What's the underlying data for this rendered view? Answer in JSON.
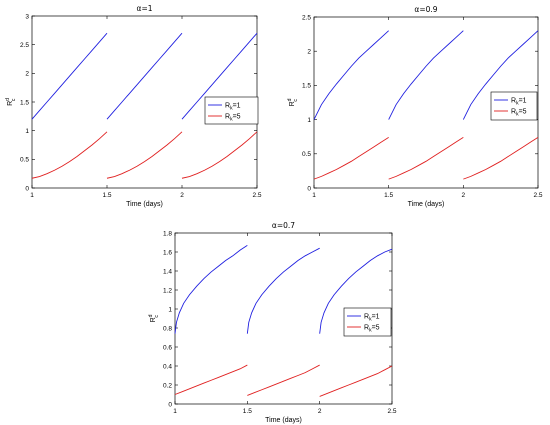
{
  "chart_data": [
    {
      "type": "line",
      "title": "α=1",
      "xlabel": "Time (days)",
      "ylabel": "R_c^d",
      "xlim": [
        1,
        2.5
      ],
      "ylim": [
        0,
        3
      ],
      "xticks": [
        "1",
        "1.5",
        "2",
        "2.5"
      ],
      "yticks": [
        "0",
        "0.5",
        "1",
        "1.5",
        "2",
        "2.5",
        "3"
      ],
      "grid": false,
      "legend_position": "right",
      "series": [
        {
          "name": "R_k=1",
          "legend_base": "R",
          "legend_sub": "k",
          "legend_tail": "=1",
          "color": "#2020e0",
          "segments": [
            [
              [
                1.0,
                1.2
              ],
              [
                1.05,
                1.35
              ],
              [
                1.1,
                1.5
              ],
              [
                1.15,
                1.65
              ],
              [
                1.2,
                1.8
              ],
              [
                1.25,
                1.95
              ],
              [
                1.3,
                2.1
              ],
              [
                1.35,
                2.25
              ],
              [
                1.4,
                2.4
              ],
              [
                1.45,
                2.55
              ],
              [
                1.5,
                2.7
              ]
            ],
            [
              [
                1.5,
                1.2
              ],
              [
                1.55,
                1.35
              ],
              [
                1.6,
                1.5
              ],
              [
                1.65,
                1.65
              ],
              [
                1.7,
                1.8
              ],
              [
                1.75,
                1.95
              ],
              [
                1.8,
                2.1
              ],
              [
                1.85,
                2.25
              ],
              [
                1.9,
                2.4
              ],
              [
                1.95,
                2.55
              ],
              [
                2.0,
                2.7
              ]
            ],
            [
              [
                2.0,
                1.2
              ],
              [
                2.05,
                1.35
              ],
              [
                2.1,
                1.5
              ],
              [
                2.15,
                1.65
              ],
              [
                2.2,
                1.8
              ],
              [
                2.25,
                1.95
              ],
              [
                2.3,
                2.1
              ],
              [
                2.35,
                2.25
              ],
              [
                2.4,
                2.4
              ],
              [
                2.45,
                2.55
              ],
              [
                2.5,
                2.7
              ]
            ]
          ]
        },
        {
          "name": "R_k=5",
          "legend_base": "R",
          "legend_sub": "k",
          "legend_tail": "=5",
          "color": "#e02020",
          "segments": [
            [
              [
                1.0,
                0.17
              ],
              [
                1.05,
                0.2
              ],
              [
                1.1,
                0.25
              ],
              [
                1.15,
                0.31
              ],
              [
                1.2,
                0.38
              ],
              [
                1.25,
                0.46
              ],
              [
                1.3,
                0.55
              ],
              [
                1.35,
                0.65
              ],
              [
                1.4,
                0.75
              ],
              [
                1.45,
                0.86
              ],
              [
                1.5,
                0.98
              ]
            ],
            [
              [
                1.5,
                0.17
              ],
              [
                1.55,
                0.2
              ],
              [
                1.6,
                0.25
              ],
              [
                1.65,
                0.31
              ],
              [
                1.7,
                0.38
              ],
              [
                1.75,
                0.46
              ],
              [
                1.8,
                0.55
              ],
              [
                1.85,
                0.65
              ],
              [
                1.9,
                0.75
              ],
              [
                1.95,
                0.86
              ],
              [
                2.0,
                0.98
              ]
            ],
            [
              [
                2.0,
                0.17
              ],
              [
                2.05,
                0.2
              ],
              [
                2.1,
                0.25
              ],
              [
                2.15,
                0.31
              ],
              [
                2.2,
                0.38
              ],
              [
                2.25,
                0.46
              ],
              [
                2.3,
                0.55
              ],
              [
                2.35,
                0.65
              ],
              [
                2.4,
                0.75
              ],
              [
                2.45,
                0.86
              ],
              [
                2.5,
                0.98
              ]
            ]
          ]
        }
      ]
    },
    {
      "type": "line",
      "title": "α=0.9",
      "xlabel": "Time (days)",
      "ylabel": "R_c^d",
      "xlim": [
        1,
        2.5
      ],
      "ylim": [
        0,
        2.5
      ],
      "xticks": [
        "1",
        "1.5",
        "2",
        "2.5"
      ],
      "yticks": [
        "0",
        "0.5",
        "1",
        "1.5",
        "2",
        "2.5"
      ],
      "grid": false,
      "legend_position": "right",
      "series": [
        {
          "name": "R_k=1",
          "legend_base": "R",
          "legend_sub": "k",
          "legend_tail": "=1",
          "color": "#2020e0",
          "segments": [
            [
              [
                1.0,
                1.0
              ],
              [
                1.05,
                1.22
              ],
              [
                1.1,
                1.38
              ],
              [
                1.15,
                1.52
              ],
              [
                1.2,
                1.65
              ],
              [
                1.25,
                1.78
              ],
              [
                1.3,
                1.9
              ],
              [
                1.35,
                2.0
              ],
              [
                1.4,
                2.1
              ],
              [
                1.45,
                2.2
              ],
              [
                1.5,
                2.3
              ]
            ],
            [
              [
                1.5,
                1.0
              ],
              [
                1.55,
                1.22
              ],
              [
                1.6,
                1.38
              ],
              [
                1.65,
                1.52
              ],
              [
                1.7,
                1.65
              ],
              [
                1.75,
                1.78
              ],
              [
                1.8,
                1.9
              ],
              [
                1.85,
                2.0
              ],
              [
                1.9,
                2.1
              ],
              [
                1.95,
                2.2
              ],
              [
                2.0,
                2.3
              ]
            ],
            [
              [
                2.0,
                1.0
              ],
              [
                2.05,
                1.22
              ],
              [
                2.1,
                1.38
              ],
              [
                2.15,
                1.52
              ],
              [
                2.2,
                1.65
              ],
              [
                2.25,
                1.78
              ],
              [
                2.3,
                1.9
              ],
              [
                2.35,
                2.0
              ],
              [
                2.4,
                2.1
              ],
              [
                2.45,
                2.2
              ],
              [
                2.5,
                2.3
              ]
            ]
          ]
        },
        {
          "name": "R_k=5",
          "legend_base": "R",
          "legend_sub": "k",
          "legend_tail": "=5",
          "color": "#e02020",
          "segments": [
            [
              [
                1.0,
                0.13
              ],
              [
                1.05,
                0.17
              ],
              [
                1.1,
                0.22
              ],
              [
                1.15,
                0.27
              ],
              [
                1.2,
                0.33
              ],
              [
                1.25,
                0.39
              ],
              [
                1.3,
                0.46
              ],
              [
                1.35,
                0.53
              ],
              [
                1.4,
                0.6
              ],
              [
                1.45,
                0.67
              ],
              [
                1.5,
                0.74
              ]
            ],
            [
              [
                1.5,
                0.13
              ],
              [
                1.55,
                0.17
              ],
              [
                1.6,
                0.22
              ],
              [
                1.65,
                0.27
              ],
              [
                1.7,
                0.33
              ],
              [
                1.75,
                0.39
              ],
              [
                1.8,
                0.46
              ],
              [
                1.85,
                0.53
              ],
              [
                1.9,
                0.6
              ],
              [
                1.95,
                0.67
              ],
              [
                2.0,
                0.74
              ]
            ],
            [
              [
                2.0,
                0.13
              ],
              [
                2.05,
                0.17
              ],
              [
                2.1,
                0.22
              ],
              [
                2.15,
                0.27
              ],
              [
                2.2,
                0.33
              ],
              [
                2.25,
                0.39
              ],
              [
                2.3,
                0.46
              ],
              [
                2.35,
                0.53
              ],
              [
                2.4,
                0.6
              ],
              [
                2.45,
                0.67
              ],
              [
                2.5,
                0.74
              ]
            ]
          ]
        }
      ]
    },
    {
      "type": "line",
      "title": "α=0.7",
      "xlabel": "Time (days)",
      "ylabel": "R_c^d",
      "xlim": [
        1,
        2.5
      ],
      "ylim": [
        0,
        1.8
      ],
      "xticks": [
        "1",
        "1.5",
        "2",
        "2.5"
      ],
      "yticks": [
        "0",
        "0.2",
        "0.4",
        "0.6",
        "0.8",
        "1",
        "1.2",
        "1.4",
        "1.6",
        "1.8"
      ],
      "grid": false,
      "legend_position": "right",
      "series": [
        {
          "name": "R_k=1",
          "legend_base": "R",
          "legend_sub": "k",
          "legend_tail": "=1",
          "color": "#2020e0",
          "segments": [
            [
              [
                1.0,
                0.74
              ],
              [
                1.01,
                0.86
              ],
              [
                1.03,
                0.96
              ],
              [
                1.06,
                1.06
              ],
              [
                1.1,
                1.15
              ],
              [
                1.15,
                1.24
              ],
              [
                1.2,
                1.32
              ],
              [
                1.25,
                1.39
              ],
              [
                1.3,
                1.45
              ],
              [
                1.35,
                1.51
              ],
              [
                1.4,
                1.56
              ],
              [
                1.45,
                1.62
              ],
              [
                1.5,
                1.67
              ]
            ],
            [
              [
                1.5,
                0.74
              ],
              [
                1.51,
                0.86
              ],
              [
                1.53,
                0.96
              ],
              [
                1.56,
                1.06
              ],
              [
                1.6,
                1.15
              ],
              [
                1.65,
                1.24
              ],
              [
                1.7,
                1.32
              ],
              [
                1.75,
                1.39
              ],
              [
                1.8,
                1.45
              ],
              [
                1.85,
                1.51
              ],
              [
                1.9,
                1.56
              ],
              [
                1.95,
                1.6
              ],
              [
                2.0,
                1.64
              ]
            ],
            [
              [
                2.0,
                0.74
              ],
              [
                2.01,
                0.86
              ],
              [
                2.03,
                0.96
              ],
              [
                2.06,
                1.06
              ],
              [
                2.1,
                1.15
              ],
              [
                2.15,
                1.24
              ],
              [
                2.2,
                1.32
              ],
              [
                2.25,
                1.39
              ],
              [
                2.3,
                1.45
              ],
              [
                2.35,
                1.51
              ],
              [
                2.4,
                1.56
              ],
              [
                2.45,
                1.6
              ],
              [
                2.5,
                1.63
              ]
            ]
          ]
        },
        {
          "name": "R_k=5",
          "legend_base": "R",
          "legend_sub": "k",
          "legend_tail": "=5",
          "color": "#e02020",
          "segments": [
            [
              [
                1.0,
                0.1
              ],
              [
                1.05,
                0.13
              ],
              [
                1.1,
                0.16
              ],
              [
                1.15,
                0.19
              ],
              [
                1.2,
                0.22
              ],
              [
                1.25,
                0.25
              ],
              [
                1.3,
                0.28
              ],
              [
                1.35,
                0.31
              ],
              [
                1.4,
                0.34
              ],
              [
                1.45,
                0.37
              ],
              [
                1.5,
                0.41
              ]
            ],
            [
              [
                1.5,
                0.09
              ],
              [
                1.55,
                0.12
              ],
              [
                1.6,
                0.15
              ],
              [
                1.65,
                0.18
              ],
              [
                1.7,
                0.21
              ],
              [
                1.75,
                0.24
              ],
              [
                1.8,
                0.27
              ],
              [
                1.85,
                0.3
              ],
              [
                1.9,
                0.33
              ],
              [
                1.95,
                0.37
              ],
              [
                2.0,
                0.41
              ]
            ],
            [
              [
                2.0,
                0.08
              ],
              [
                2.05,
                0.11
              ],
              [
                2.1,
                0.14
              ],
              [
                2.15,
                0.17
              ],
              [
                2.2,
                0.2
              ],
              [
                2.25,
                0.23
              ],
              [
                2.3,
                0.26
              ],
              [
                2.35,
                0.29
              ],
              [
                2.4,
                0.32
              ],
              [
                2.45,
                0.36
              ],
              [
                2.5,
                0.4
              ]
            ]
          ]
        }
      ]
    }
  ]
}
